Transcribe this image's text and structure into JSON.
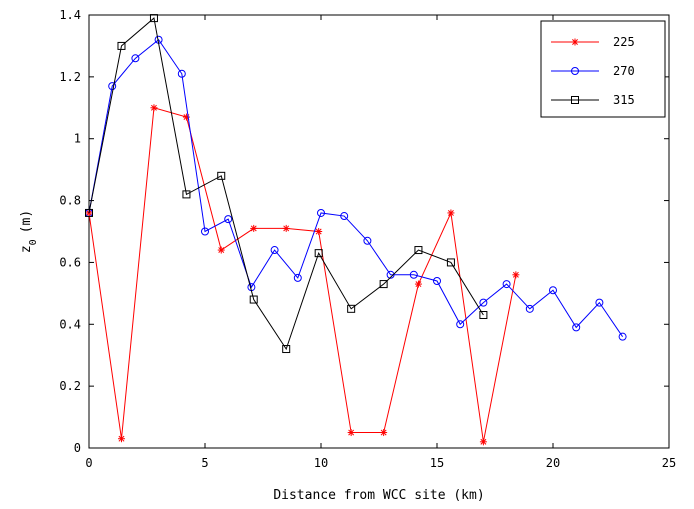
{
  "chart_data": {
    "type": "line",
    "xlabel": "Distance from WCC site (km)",
    "ylabel_main": "z",
    "ylabel_sub": "0",
    "ylabel_unit": "(m)",
    "xlim": [
      0,
      25
    ],
    "ylim": [
      0,
      1.4
    ],
    "x_ticks": [
      0,
      5,
      10,
      15,
      20,
      25
    ],
    "x_tick_labels": [
      "0",
      "5",
      "10",
      "15",
      "20",
      "25"
    ],
    "y_ticks": [
      0,
      0.2,
      0.4,
      0.6,
      0.8,
      1,
      1.2,
      1.4
    ],
    "y_tick_labels": [
      "0",
      "0.2",
      "0.4",
      "0.6",
      "0.8",
      "1",
      "1.2",
      "1.4"
    ],
    "grid": false,
    "legend_position": "top-right",
    "series": [
      {
        "name": "225",
        "color": "#ff0000",
        "marker": "asterisk",
        "x": [
          0,
          1.4,
          2.8,
          4.2,
          5.7,
          7.1,
          8.5,
          9.9,
          11.3,
          12.7,
          14.2,
          15.6,
          17.0,
          18.4
        ],
        "y": [
          0.76,
          0.03,
          1.1,
          1.07,
          0.64,
          0.71,
          0.71,
          0.7,
          0.05,
          0.05,
          0.53,
          0.76,
          0.02,
          0.56
        ]
      },
      {
        "name": "270",
        "color": "#0000ff",
        "marker": "circle",
        "x": [
          0,
          1,
          2,
          3,
          4,
          5,
          6,
          7,
          8,
          9,
          10,
          11,
          12,
          13,
          14,
          15,
          16,
          17,
          18,
          19,
          20,
          21,
          22,
          23
        ],
        "y": [
          0.76,
          1.17,
          1.26,
          1.32,
          1.21,
          0.7,
          0.74,
          0.52,
          0.64,
          0.55,
          0.76,
          0.75,
          0.67,
          0.56,
          0.56,
          0.54,
          0.4,
          0.47,
          0.53,
          0.45,
          0.51,
          0.39,
          0.47,
          0.36
        ]
      },
      {
        "name": "315",
        "color": "#000000",
        "marker": "square",
        "x": [
          0,
          1.4,
          2.8,
          4.2,
          5.7,
          7.1,
          8.5,
          9.9,
          11.3,
          12.7,
          14.2,
          15.6,
          17.0
        ],
        "y": [
          0.76,
          1.3,
          1.39,
          0.82,
          0.88,
          0.48,
          0.32,
          0.63,
          0.45,
          0.53,
          0.64,
          0.6,
          0.43
        ]
      }
    ]
  }
}
